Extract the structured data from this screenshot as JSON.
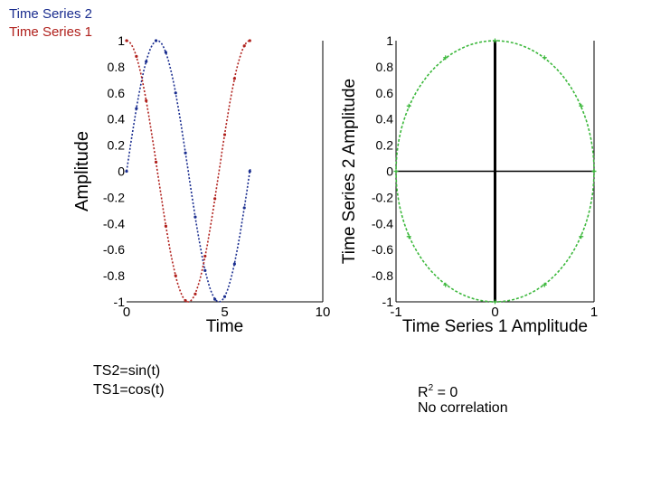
{
  "legend": {
    "series2": "Time Series 2",
    "series1": "Time Series 1"
  },
  "notes": {
    "eq_ts2": "TS2=sin(t)",
    "eq_ts1": "TS1=cos(t)",
    "r2_label": "R",
    "r2_sup": "2",
    "r2_value": " = 0",
    "correlation": "No  correlation"
  },
  "chart_data": [
    {
      "type": "line",
      "xlabel": "Time",
      "ylabel": "Amplitude",
      "xlim": [
        0,
        10
      ],
      "ylim": [
        -1,
        1
      ],
      "xticks": [
        "0",
        "5",
        "10"
      ],
      "yticks": [
        "1",
        "0.8",
        "0.6",
        "0.4",
        "0.2",
        "0",
        "-0.2",
        "-0.4",
        "-0.6",
        "-0.8",
        "-1"
      ],
      "series": [
        {
          "name": "Time Series 2",
          "function": "sin(t)",
          "color": "#1a2d8f",
          "x": [
            0,
            0.5,
            1,
            1.5,
            2,
            2.5,
            3,
            3.5,
            4,
            4.5,
            5,
            5.5,
            6,
            6.28
          ],
          "values": [
            0,
            0.48,
            0.84,
            1.0,
            0.91,
            0.6,
            0.14,
            -0.35,
            -0.76,
            -0.98,
            -0.96,
            -0.71,
            -0.28,
            0
          ]
        },
        {
          "name": "Time Series 1",
          "function": "cos(t)",
          "color": "#b0201c",
          "x": [
            0,
            0.5,
            1,
            1.5,
            2,
            2.5,
            3,
            3.5,
            4,
            4.5,
            5,
            5.5,
            6,
            6.28
          ],
          "values": [
            1.0,
            0.88,
            0.54,
            0.07,
            -0.42,
            -0.8,
            -0.99,
            -0.94,
            -0.65,
            -0.21,
            0.28,
            0.71,
            0.96,
            1.0
          ]
        }
      ],
      "grid": false
    },
    {
      "type": "scatter",
      "xlabel": "Time Series 1 Amplitude",
      "ylabel": "Time Series 2 Amplitude",
      "xlim": [
        -1,
        1
      ],
      "ylim": [
        -1,
        1
      ],
      "xticks": [
        "-1",
        "0",
        "1"
      ],
      "yticks": [
        "1",
        "0.8",
        "0.6",
        "0.4",
        "0.2",
        "0",
        "-0.2",
        "-0.4",
        "-0.6",
        "-0.8",
        "-1"
      ],
      "series": [
        {
          "color": "#3cb83c",
          "x": [
            1,
            0.87,
            0.5,
            0,
            -0.5,
            -0.87,
            -1,
            -0.87,
            -0.5,
            0,
            0.5,
            0.87,
            1
          ],
          "values": [
            0,
            0.5,
            0.87,
            1,
            0.87,
            0.5,
            0,
            -0.5,
            -0.87,
            -1,
            -0.87,
            -0.5,
            0
          ]
        }
      ],
      "crosshair": {
        "x": 0,
        "y": 0
      },
      "grid": false
    }
  ]
}
